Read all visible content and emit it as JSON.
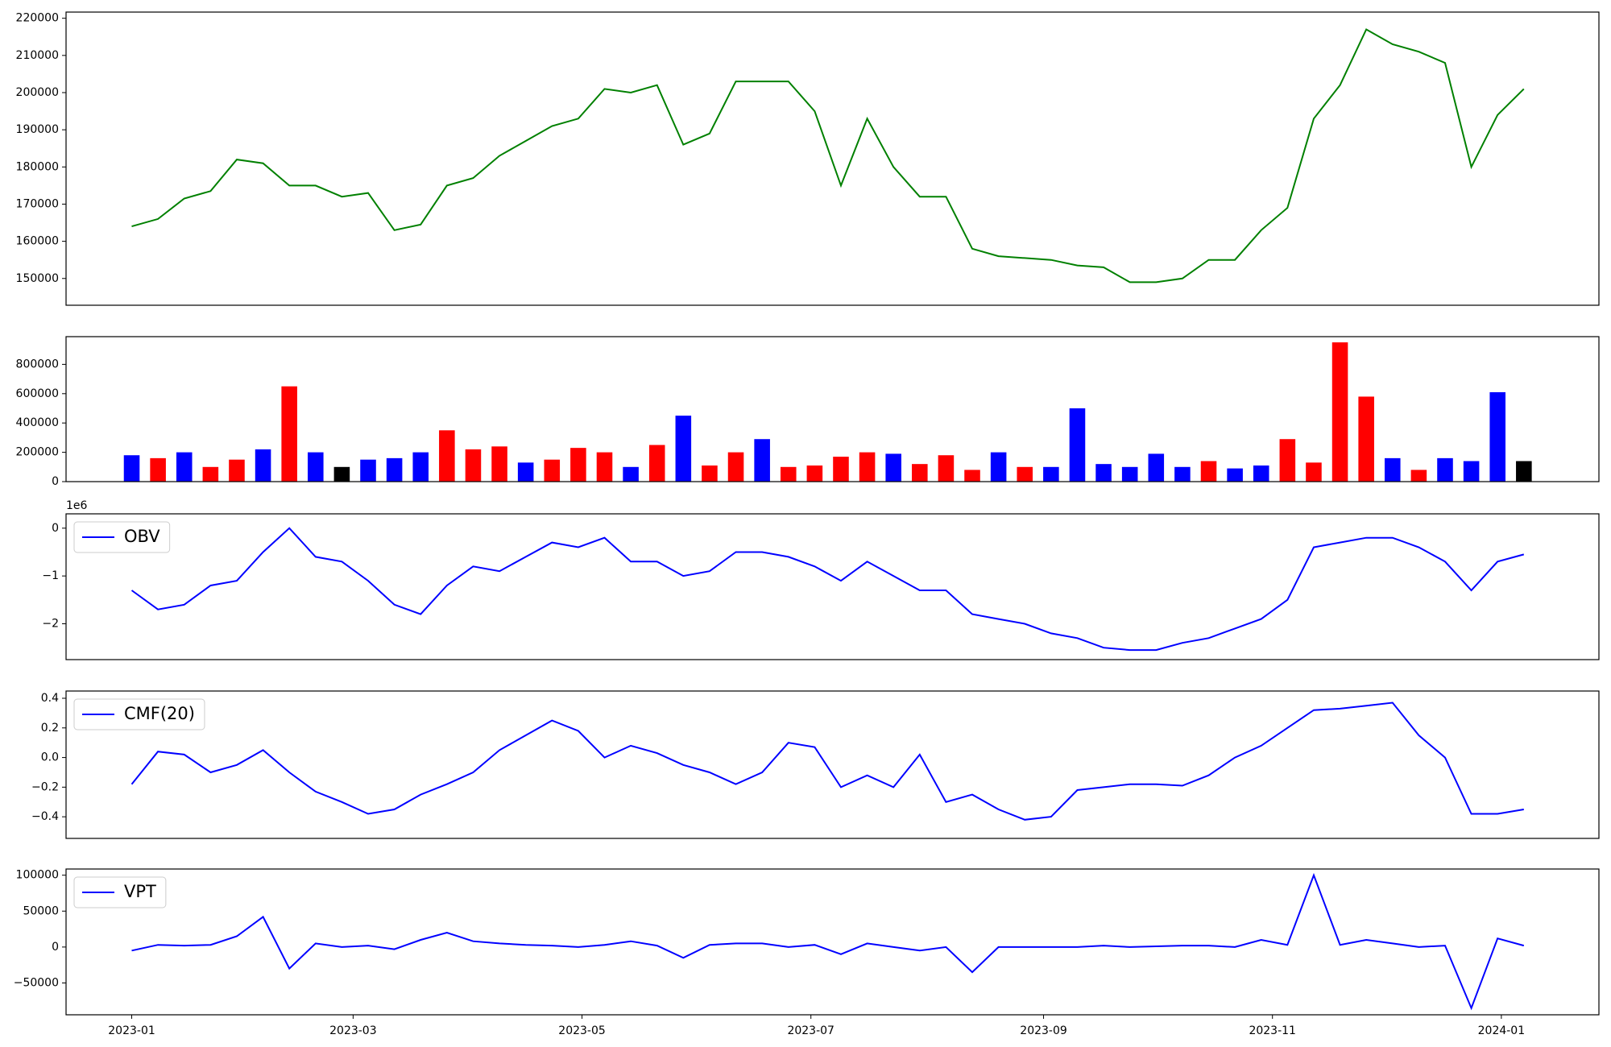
{
  "chart_data": [
    {
      "type": "line",
      "color": "green",
      "x": [
        0,
        7,
        14,
        21,
        28,
        35,
        42,
        49,
        56,
        63,
        70,
        77,
        84,
        91,
        98,
        105,
        112,
        119,
        126,
        133,
        140,
        147,
        154,
        161,
        168,
        175,
        182,
        189,
        196,
        203,
        210,
        217,
        224,
        231,
        238,
        245,
        252,
        259,
        266,
        273,
        280,
        287,
        294,
        301,
        308,
        315,
        322,
        329,
        336,
        343,
        350,
        357,
        364,
        371
      ],
      "values": [
        164000,
        166000,
        171500,
        173500,
        182000,
        181000,
        175000,
        175000,
        172000,
        173000,
        163000,
        164500,
        175000,
        177000,
        183000,
        187000,
        191000,
        193000,
        201000,
        200000,
        202000,
        186000,
        189000,
        203000,
        203000,
        203000,
        195000,
        175000,
        193000,
        180000,
        172000,
        172000,
        158000,
        156000,
        155500,
        155000,
        153500,
        153000,
        149000,
        149000,
        150000,
        155000,
        155000,
        163000,
        169000,
        193000,
        202000,
        217000,
        213000,
        211000,
        208000,
        180000,
        194000,
        201000
      ],
      "xlim": [
        -17.5,
        391
      ],
      "ylim": [
        142800,
        221660
      ],
      "yticks": [
        150000,
        160000,
        170000,
        180000,
        190000,
        200000,
        210000,
        220000
      ]
    },
    {
      "type": "bar",
      "x": [
        0,
        7,
        14,
        21,
        28,
        35,
        42,
        49,
        56,
        63,
        70,
        77,
        84,
        91,
        98,
        105,
        112,
        119,
        126,
        133,
        140,
        147,
        154,
        161,
        168,
        175,
        182,
        189,
        196,
        203,
        210,
        217,
        224,
        231,
        238,
        245,
        252,
        259,
        266,
        273,
        280,
        287,
        294,
        301,
        308,
        315,
        322,
        329,
        336,
        343,
        350,
        357,
        364,
        371
      ],
      "values": [
        180000,
        160000,
        200000,
        100000,
        150000,
        220000,
        650000,
        200000,
        100000,
        150000,
        160000,
        200000,
        350000,
        220000,
        240000,
        130000,
        150000,
        230000,
        200000,
        100000,
        250000,
        450000,
        110000,
        200000,
        290000,
        100000,
        110000,
        170000,
        200000,
        190000,
        120000,
        180000,
        80000,
        200000,
        100000,
        100000,
        500000,
        120000,
        100000,
        190000,
        100000,
        140000,
        90000,
        110000,
        290000,
        130000,
        950000,
        580000,
        160000,
        80000,
        160000,
        140000,
        610000,
        140000
      ],
      "colors": [
        "blue",
        "red",
        "blue",
        "red",
        "red",
        "blue",
        "red",
        "blue",
        "black",
        "blue",
        "blue",
        "blue",
        "red",
        "red",
        "red",
        "blue",
        "red",
        "red",
        "red",
        "blue",
        "red",
        "blue",
        "red",
        "red",
        "blue",
        "red",
        "red",
        "red",
        "red",
        "blue",
        "red",
        "red",
        "red",
        "blue",
        "red",
        "blue",
        "blue",
        "blue",
        "blue",
        "blue",
        "blue",
        "red",
        "blue",
        "blue",
        "red",
        "red",
        "red",
        "red",
        "blue",
        "red",
        "blue",
        "blue",
        "blue",
        "black"
      ],
      "xlim": [
        -17.5,
        391
      ],
      "ylim": [
        0,
        989000
      ],
      "yticks": [
        0,
        200000,
        400000,
        600000,
        800000
      ]
    },
    {
      "type": "line",
      "offset_label": "1e6",
      "legend": "upper left",
      "x": [
        0,
        7,
        14,
        21,
        28,
        35,
        42,
        49,
        56,
        63,
        70,
        77,
        84,
        91,
        98,
        105,
        112,
        119,
        126,
        133,
        140,
        147,
        154,
        161,
        168,
        175,
        182,
        189,
        196,
        203,
        210,
        217,
        224,
        231,
        238,
        245,
        252,
        259,
        266,
        273,
        280,
        287,
        294,
        301,
        308,
        315,
        322,
        329,
        336,
        343,
        350,
        357,
        364,
        371
      ],
      "series": [
        {
          "name": "OBV",
          "color": "blue",
          "values": [
            -1.3,
            -1.7,
            -1.6,
            -1.2,
            -1.1,
            -0.5,
            0,
            -0.6,
            -0.7,
            -1.1,
            -1.6,
            -1.8,
            -1.2,
            -0.8,
            -0.9,
            -0.6,
            -0.3,
            -0.4,
            -0.2,
            -0.7,
            -0.7,
            -1,
            -0.9,
            -0.5,
            -0.5,
            -0.6,
            -0.8,
            -1.1,
            -0.7,
            -1,
            -1.3,
            -1.3,
            -1.8,
            -1.9,
            -2,
            -2.2,
            -2.3,
            -2.5,
            -2.55,
            -2.55,
            -2.4,
            -2.3,
            -2.1,
            -1.9,
            -1.5,
            -0.4,
            -0.3,
            -0.2,
            -0.2,
            -0.4,
            -0.7,
            -1.3,
            -0.7,
            -0.55
          ]
        }
      ],
      "xlim": [
        -17.5,
        391
      ],
      "ylim": [
        -2.75,
        0.3
      ],
      "yticks": [
        0,
        {
          "value": -1,
          "label": "−1"
        },
        {
          "value": -2,
          "label": "−2"
        }
      ]
    },
    {
      "type": "line",
      "legend": "upper left",
      "x": [
        0,
        7,
        14,
        21,
        28,
        35,
        42,
        49,
        56,
        63,
        70,
        77,
        84,
        91,
        98,
        105,
        112,
        119,
        126,
        133,
        140,
        147,
        154,
        161,
        168,
        175,
        182,
        189,
        196,
        203,
        210,
        217,
        224,
        231,
        238,
        245,
        252,
        259,
        266,
        273,
        280,
        287,
        294,
        301,
        308,
        315,
        322,
        329,
        336,
        343,
        350,
        357,
        364,
        371
      ],
      "series": [
        {
          "name": "CMF(20)",
          "color": "blue",
          "values": [
            -0.18,
            0.04,
            0.02,
            -0.1,
            -0.05,
            0.05,
            -0.1,
            -0.23,
            -0.3,
            -0.38,
            -0.35,
            -0.25,
            -0.18,
            -0.1,
            0.05,
            0.15,
            0.25,
            0.18,
            0,
            0.08,
            0.03,
            -0.05,
            -0.1,
            -0.18,
            -0.1,
            0.1,
            0.07,
            -0.2,
            -0.12,
            -0.2,
            0.02,
            -0.3,
            -0.25,
            -0.35,
            -0.42,
            -0.4,
            -0.22,
            -0.2,
            -0.18,
            -0.18,
            -0.19,
            -0.12,
            0,
            0.08,
            0.2,
            0.32,
            0.33,
            0.35,
            0.37,
            0.15,
            0,
            -0.38,
            -0.38,
            -0.35
          ]
        }
      ],
      "xlim": [
        -17.5,
        391
      ],
      "ylim": [
        -0.546,
        0.449
      ],
      "yticks": [
        0.4,
        0.2,
        {
          "value": 0,
          "label": "0.0"
        },
        {
          "value": -0.2,
          "label": "−0.2"
        },
        {
          "value": -0.4,
          "label": "−0.4"
        }
      ]
    },
    {
      "type": "line",
      "legend": "upper left",
      "x": [
        0,
        7,
        14,
        21,
        28,
        35,
        42,
        49,
        56,
        63,
        70,
        77,
        84,
        91,
        98,
        105,
        112,
        119,
        126,
        133,
        140,
        147,
        154,
        161,
        168,
        175,
        182,
        189,
        196,
        203,
        210,
        217,
        224,
        231,
        238,
        245,
        252,
        259,
        266,
        273,
        280,
        287,
        294,
        301,
        308,
        315,
        322,
        329,
        336,
        343,
        350,
        357,
        364,
        371
      ],
      "series": [
        {
          "name": "VPT",
          "color": "blue",
          "values": [
            -5000,
            3000,
            2000,
            3000,
            15000,
            42000,
            -30000,
            5000,
            0,
            2000,
            -3000,
            10000,
            20000,
            8000,
            5000,
            3000,
            2000,
            0,
            3000,
            8000,
            2000,
            -15000,
            3000,
            5000,
            5000,
            0,
            3000,
            -10000,
            5000,
            0,
            -5000,
            0,
            -35000,
            0,
            0,
            0,
            0,
            2000,
            0,
            1000,
            2000,
            2000,
            0,
            10000,
            3000,
            100000,
            3000,
            10000,
            5000,
            0,
            2000,
            -85000,
            12000,
            2000
          ]
        }
      ],
      "xlim": [
        -17.5,
        391
      ],
      "ylim": [
        -94300,
        108600
      ],
      "yticks": [
        100000,
        50000,
        0,
        {
          "value": -50000,
          "label": "−50000"
        }
      ],
      "xticks": [
        {
          "value": 0,
          "label": "2023-01"
        },
        {
          "value": 59,
          "label": "2023-03"
        },
        {
          "value": 120,
          "label": "2023-05"
        },
        {
          "value": 181,
          "label": "2023-07"
        },
        {
          "value": 243,
          "label": "2023-09"
        },
        {
          "value": 304,
          "label": "2023-11"
        },
        {
          "value": 365,
          "label": "2024-01"
        }
      ]
    }
  ]
}
